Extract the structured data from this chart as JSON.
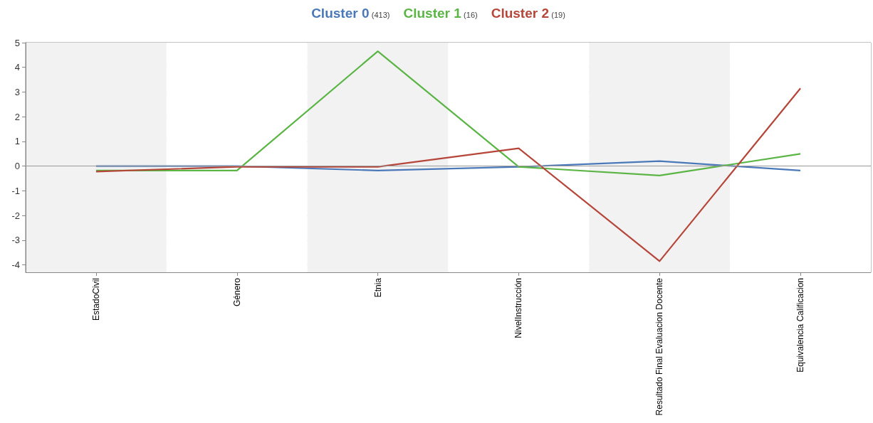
{
  "chart_data": {
    "type": "line",
    "categories": [
      "EstadoCivil",
      "Género",
      "Etnia",
      "NivelInstrucción",
      "Resultado Final Evaluacion Docente",
      "Equivalencia Calificacion"
    ],
    "series": [
      {
        "name": "Cluster 0 (413)",
        "color": "#4a78b8",
        "values": [
          0,
          0,
          -0.18,
          -0.03,
          0.2,
          -0.18
        ]
      },
      {
        "name": "Cluster 1 (16)",
        "color": "#5bb545",
        "values": [
          -0.18,
          -0.18,
          4.65,
          -0.03,
          -0.38,
          0.5
        ]
      },
      {
        "name": "Cluster 2 (19)",
        "color": "#b6463a",
        "values": [
          -0.22,
          -0.03,
          -0.03,
          0.72,
          -3.85,
          3.15
        ]
      }
    ],
    "ylim": [
      -4.3,
      5
    ],
    "yticks": [
      -4,
      -3,
      -2,
      -1,
      0,
      1,
      2,
      3,
      4,
      5
    ],
    "ref_lines": [
      {
        "axis": "y",
        "value": 0,
        "color": "#999999"
      }
    ],
    "grid": "y",
    "legend": "top",
    "marker": "none",
    "line_style": "solid"
  }
}
